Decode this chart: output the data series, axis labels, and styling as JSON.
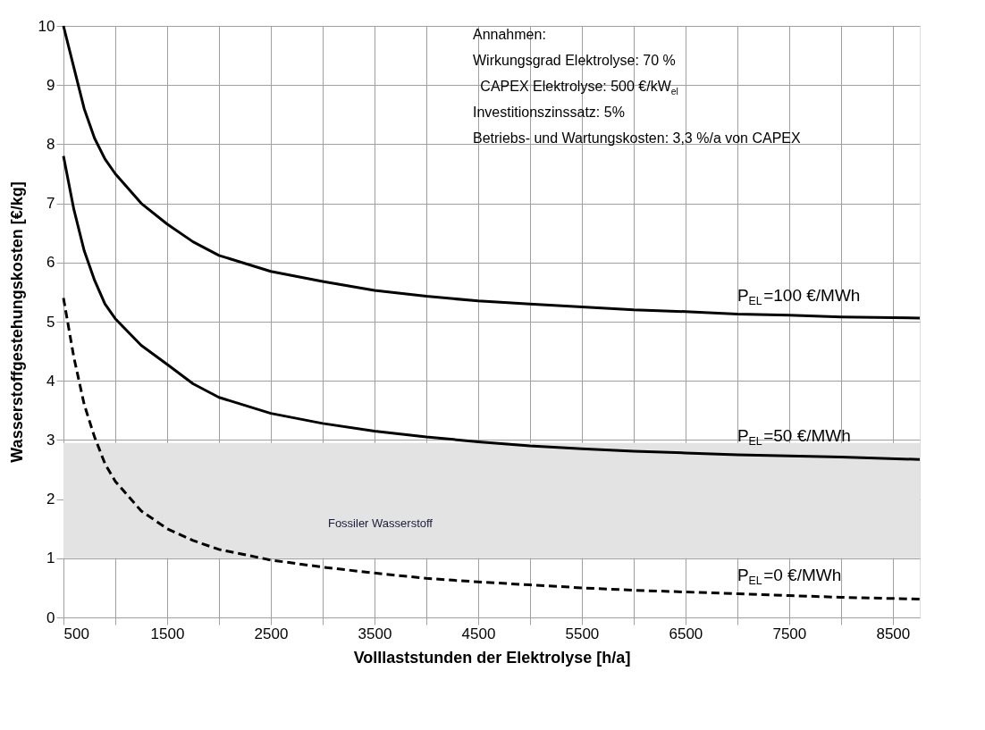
{
  "chart_data": {
    "type": "line",
    "xlabel": "Volllaststunden  der Elektrolyse  [h/a]",
    "ylabel": "Wasserstoffgestehungskosten  [€/kg]",
    "x": [
      500,
      600,
      700,
      800,
      900,
      1000,
      1250,
      1500,
      1750,
      2000,
      2500,
      3000,
      3500,
      4000,
      4500,
      5000,
      5500,
      6000,
      6500,
      7000,
      7500,
      8000,
      8760
    ],
    "series": [
      {
        "name": "P$_{EL}$=100 €/MWh",
        "color": "#000000",
        "line_style": "solid",
        "values": [
          10.0,
          9.3,
          8.6,
          8.1,
          7.75,
          7.5,
          7.0,
          6.65,
          6.35,
          6.12,
          5.85,
          5.68,
          5.53,
          5.43,
          5.35,
          5.3,
          5.25,
          5.2,
          5.17,
          5.13,
          5.11,
          5.08,
          5.06
        ]
      },
      {
        "name": "P$_{EL}$=50 €/MWh",
        "color": "#000000",
        "line_style": "solid",
        "values": [
          7.8,
          6.9,
          6.2,
          5.7,
          5.3,
          5.05,
          4.6,
          4.28,
          3.95,
          3.72,
          3.45,
          3.28,
          3.15,
          3.05,
          2.97,
          2.9,
          2.85,
          2.81,
          2.78,
          2.75,
          2.73,
          2.71,
          2.67
        ]
      },
      {
        "name": "P$_{EL}$=0 €/MWh",
        "color": "#000000",
        "line_style": "dashed",
        "values": [
          5.4,
          4.4,
          3.6,
          3.05,
          2.6,
          2.3,
          1.8,
          1.5,
          1.3,
          1.15,
          0.97,
          0.85,
          0.75,
          0.66,
          0.6,
          0.55,
          0.5,
          0.46,
          0.43,
          0.4,
          0.37,
          0.34,
          0.31
        ]
      }
    ],
    "xlim": [
      500,
      8760
    ],
    "xticks": [
      500,
      {
        "value": 1000,
        "label": null
      },
      1500,
      {
        "value": 2000,
        "label": null
      },
      2500,
      {
        "value": 3000,
        "label": null
      },
      3500,
      {
        "value": 4000,
        "label": null
      },
      4500,
      {
        "value": 5000,
        "label": null
      },
      5500,
      {
        "value": 6000,
        "label": null
      },
      6500,
      {
        "value": 7000,
        "label": null
      },
      7500,
      {
        "value": 8000,
        "label": null
      },
      8500
    ],
    "ylim": [
      0,
      10
    ],
    "yticks": [
      0,
      1,
      2,
      3,
      4,
      5,
      6,
      7,
      8,
      9,
      10
    ],
    "grid": true,
    "bands": [
      {
        "axis": "y",
        "from": 1,
        "to": 2.95,
        "label": "Fossiler Wasserstoff",
        "color": "#e3e3e3"
      }
    ],
    "annotations": [
      "Annahmen:",
      "Wirkungsgrad Elektrolyse: 70 %",
      "CAPEX Elektrolyse: 500 €/kW$_{el}$",
      "Investitionszinssatz: 5%",
      "Betriebs- und Wartungskosten: 3,3 %/a von CAPEX"
    ]
  }
}
